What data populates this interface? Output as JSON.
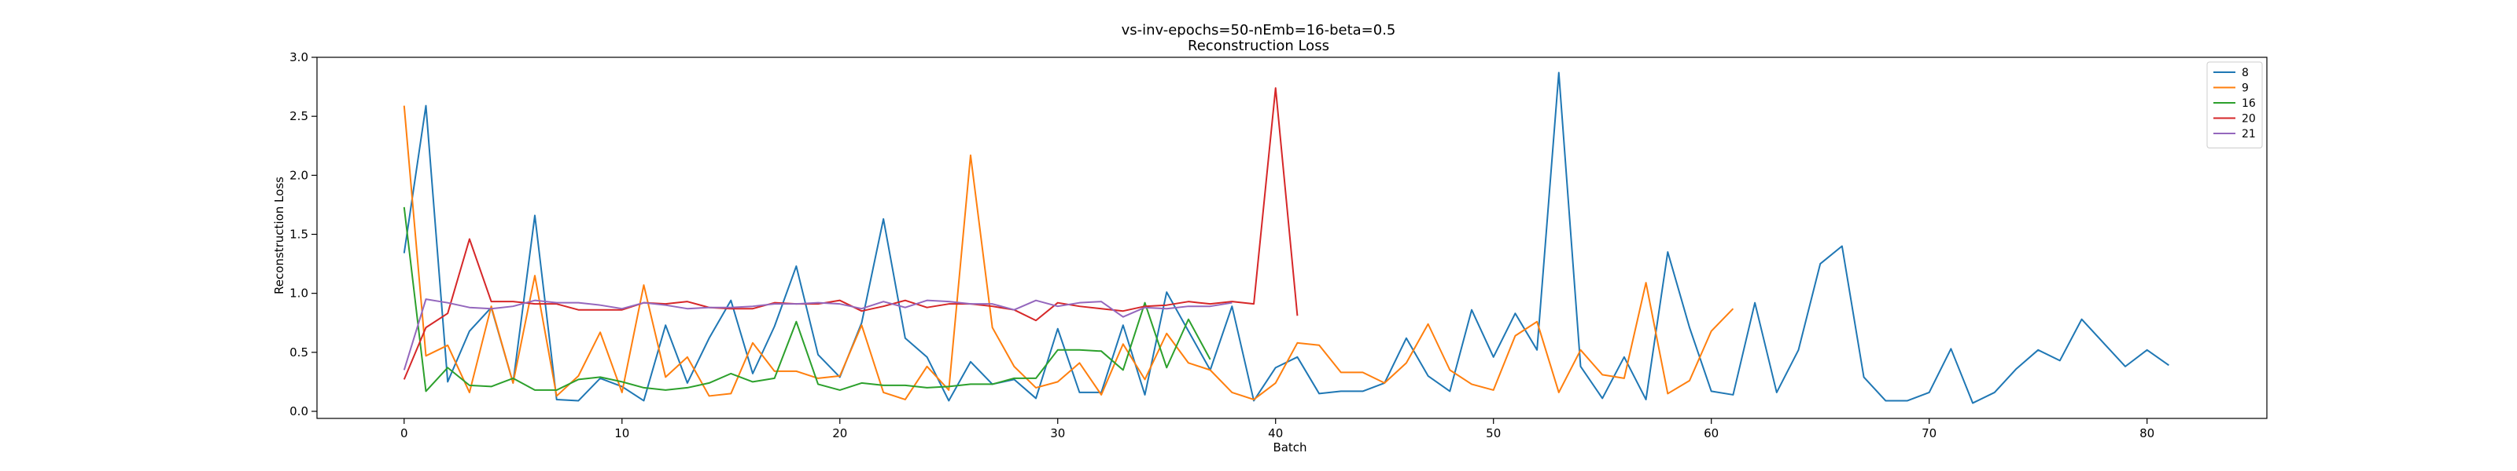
{
  "chart_data": {
    "type": "line",
    "title": "vs-inv-epochs=50-nEmb=16-beta=0.5",
    "subtitle": "Reconstruction Loss",
    "xlabel": "Batch",
    "ylabel": "Reconstruction Loss",
    "xlim": [
      -4,
      85.5
    ],
    "ylim": [
      -0.06,
      3.0
    ],
    "xticks": [
      0,
      10,
      20,
      30,
      40,
      50,
      60,
      70,
      80
    ],
    "yticks": [
      0.0,
      0.5,
      1.0,
      1.5,
      2.0,
      2.5,
      3.0
    ],
    "xtick_labels": [
      "0",
      "10",
      "20",
      "30",
      "40",
      "50",
      "60",
      "70",
      "80"
    ],
    "ytick_labels": [
      "0.0",
      "0.5",
      "1.0",
      "1.5",
      "2.0",
      "2.5",
      "3.0"
    ],
    "grid": false,
    "legend_position": "top-right",
    "series": [
      {
        "name": "8",
        "color": "#1f77b4",
        "values": [
          1.34,
          2.59,
          0.25,
          0.68,
          0.88,
          0.24,
          1.66,
          0.1,
          0.09,
          0.28,
          0.21,
          0.09,
          0.73,
          0.24,
          0.62,
          0.94,
          0.32,
          0.72,
          1.23,
          0.48,
          0.29,
          0.75,
          1.63,
          0.62,
          0.46,
          0.09,
          0.42,
          0.23,
          0.27,
          0.11,
          0.7,
          0.16,
          0.16,
          0.73,
          0.14,
          1.01,
          0.68,
          0.35,
          0.89,
          0.09,
          0.37,
          0.46,
          0.15,
          0.17,
          0.17,
          0.24,
          0.62,
          0.3,
          0.17,
          0.86,
          0.46,
          0.83,
          0.52,
          2.87,
          0.38,
          0.11,
          0.46,
          0.1,
          1.35,
          0.71,
          0.17,
          0.14,
          0.92,
          0.16,
          0.52,
          1.25,
          1.4,
          0.29,
          0.09,
          0.09,
          0.16,
          0.53,
          0.07,
          0.16,
          0.36,
          0.52,
          0.43,
          0.78,
          0.58,
          0.38,
          0.52,
          0.39
        ]
      },
      {
        "name": "9",
        "color": "#ff7f0e",
        "values": [
          2.59,
          0.47,
          0.56,
          0.16,
          0.89,
          0.24,
          1.15,
          0.13,
          0.3,
          0.67,
          0.16,
          1.07,
          0.29,
          0.46,
          0.13,
          0.15,
          0.58,
          0.34,
          0.34,
          0.28,
          0.3,
          0.73,
          0.16,
          0.1,
          0.38,
          0.18,
          2.17,
          0.71,
          0.38,
          0.2,
          0.25,
          0.41,
          0.14,
          0.57,
          0.27,
          0.66,
          0.41,
          0.35,
          0.16,
          0.1,
          0.24,
          0.58,
          0.56,
          0.33,
          0.33,
          0.24,
          0.41,
          0.74,
          0.35,
          0.23,
          0.18,
          0.64,
          0.76,
          0.16,
          0.52,
          0.31,
          0.28,
          1.09,
          0.15,
          0.26,
          0.68,
          0.87
        ]
      },
      {
        "name": "16",
        "color": "#2ca02c",
        "values": [
          1.73,
          0.17,
          0.37,
          0.22,
          0.21,
          0.28,
          0.18,
          0.18,
          0.27,
          0.29,
          0.25,
          0.2,
          0.18,
          0.2,
          0.24,
          0.32,
          0.25,
          0.28,
          0.76,
          0.23,
          0.18,
          0.24,
          0.22,
          0.22,
          0.2,
          0.21,
          0.23,
          0.23,
          0.28,
          0.28,
          0.52,
          0.52,
          0.51,
          0.35,
          0.92,
          0.37,
          0.78,
          0.44
        ]
      },
      {
        "name": "20",
        "color": "#d62728",
        "values": [
          0.27,
          0.71,
          0.83,
          1.46,
          0.93,
          0.93,
          0.91,
          0.91,
          0.86,
          0.86,
          0.86,
          0.92,
          0.91,
          0.93,
          0.88,
          0.87,
          0.87,
          0.92,
          0.91,
          0.91,
          0.94,
          0.85,
          0.89,
          0.94,
          0.88,
          0.91,
          0.91,
          0.89,
          0.86,
          0.77,
          0.92,
          0.89,
          0.87,
          0.85,
          0.89,
          0.9,
          0.93,
          0.91,
          0.93,
          0.91,
          2.74,
          0.81
        ]
      },
      {
        "name": "21",
        "color": "#9467bd",
        "values": [
          0.35,
          0.95,
          0.92,
          0.88,
          0.87,
          0.89,
          0.94,
          0.92,
          0.92,
          0.9,
          0.87,
          0.92,
          0.9,
          0.87,
          0.88,
          0.88,
          0.89,
          0.91,
          0.91,
          0.92,
          0.91,
          0.87,
          0.93,
          0.88,
          0.94,
          0.93,
          0.91,
          0.91,
          0.86,
          0.94,
          0.89,
          0.92,
          0.93,
          0.8,
          0.88,
          0.87,
          0.89,
          0.89,
          0.92
        ]
      }
    ]
  }
}
